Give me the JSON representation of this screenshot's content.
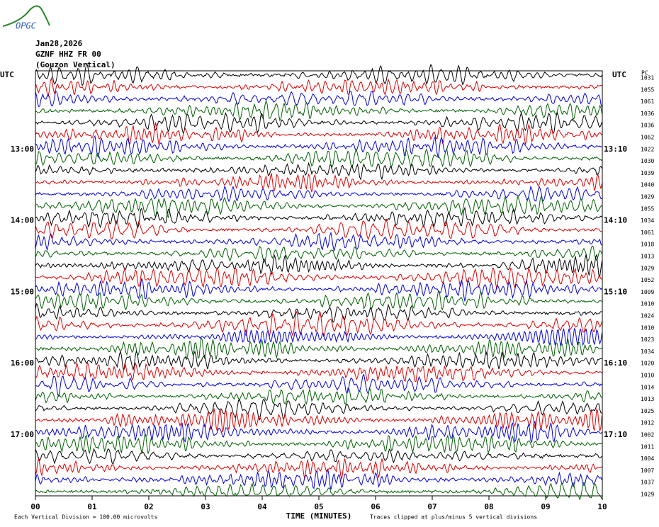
{
  "chart_data": {
    "type": "helicorder",
    "logo": "OPGC",
    "date": "Jan28,2026",
    "station": "GZNF HHZ FR 00",
    "channel": "(Gouzon Vertical)",
    "right_column_title": "PC",
    "colors": [
      "#000000",
      "#e00000",
      "#0000e0",
      "#006000"
    ],
    "left_labels": [
      "UTC",
      null,
      null,
      null,
      null,
      null,
      "13:00",
      null,
      null,
      null,
      null,
      null,
      "14:00",
      null,
      null,
      null,
      null,
      null,
      "15:00",
      null,
      null,
      null,
      null,
      null,
      "16:00",
      null,
      null,
      null,
      null,
      null,
      "17:00",
      null,
      null,
      null,
      null,
      null
    ],
    "right_labels": [
      "UTC",
      null,
      null,
      null,
      null,
      null,
      "13:10",
      null,
      null,
      null,
      null,
      null,
      "14:10",
      null,
      null,
      null,
      null,
      null,
      "15:10",
      null,
      null,
      null,
      null,
      null,
      "16:10",
      null,
      null,
      null,
      null,
      null,
      "17:10",
      null,
      null,
      null,
      null,
      null
    ],
    "row_counts": [
      "1031",
      "1055",
      "1061",
      "1036",
      "1036",
      "1062",
      "1022",
      "1030",
      "1039",
      "1040",
      "1029",
      "1055",
      "1034",
      "1061",
      "1018",
      "1013",
      "1029",
      "1052",
      "1009",
      "1010",
      "1024",
      "1010",
      "1023",
      "1034",
      "1020",
      "1010",
      "1014",
      "1013",
      "1025",
      "1012",
      "1002",
      "1011",
      "1004",
      "1007",
      "1037",
      "1029"
    ],
    "xlim": [
      0,
      10
    ],
    "xticks": [
      {
        "value": 0,
        "label": "00"
      },
      {
        "value": 1,
        "label": "01"
      },
      {
        "value": 2,
        "label": "02"
      },
      {
        "value": 3,
        "label": "03"
      },
      {
        "value": 4,
        "label": "04"
      },
      {
        "value": 5,
        "label": "05"
      },
      {
        "value": 6,
        "label": "06"
      },
      {
        "value": 7,
        "label": "07"
      },
      {
        "value": 8,
        "label": "08"
      },
      {
        "value": 9,
        "label": "09"
      },
      {
        "value": 10,
        "label": "10"
      }
    ],
    "xlabel": "TIME (MINUTES)",
    "scale_note": "Each Vertical Division =  100.00 microvolts",
    "clip_note": "Traces clipped at plus/minus 5 vertical divisions"
  }
}
